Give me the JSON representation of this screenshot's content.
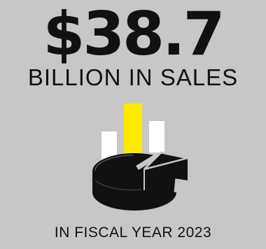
{
  "infographic": {
    "amount": "$38.7",
    "subtitle": "BILLION IN SALES",
    "footer": "IN FISCAL YEAR 2023"
  },
  "colors": {
    "background": "#c7c7c7",
    "text": "#111111",
    "highlight_bar": "#ffeb00",
    "plain_bar": "#ffffff",
    "pie": "#111111"
  },
  "icons": {
    "illustration": "bar-and-pie-chart-icon"
  }
}
